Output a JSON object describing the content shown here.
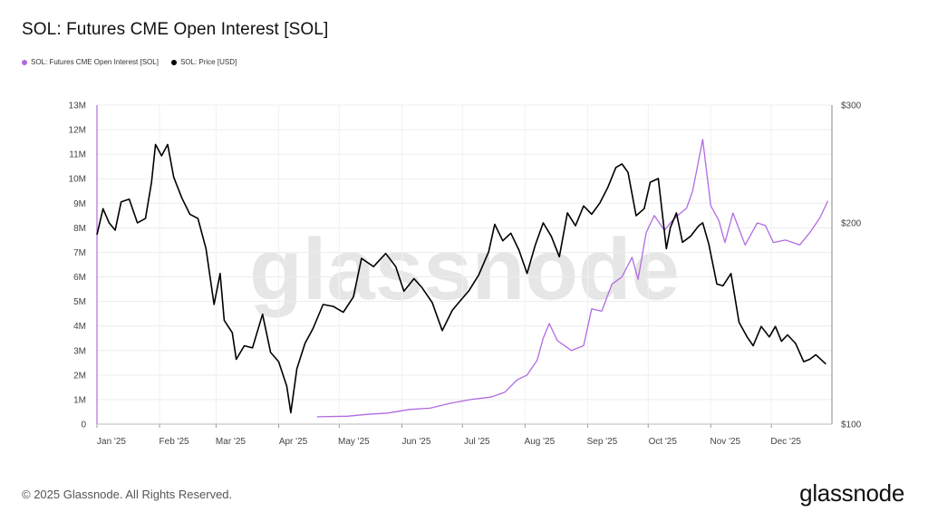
{
  "title": "SOL: Futures CME Open Interest [SOL]",
  "legend": [
    {
      "label": "SOL: Futures CME Open Interest [SOL]",
      "color": "#b06be0"
    },
    {
      "label": "SOL: Price [USD]",
      "color": "#000000"
    }
  ],
  "footer": "© 2025 Glassnode. All Rights Reserved.",
  "brand": "glassnode",
  "watermark": "glassnode",
  "chart_data": {
    "type": "line",
    "title": "SOL: Futures CME Open Interest [SOL]",
    "x_ticks": [
      "Jan '25",
      "Feb '25",
      "Mar '25",
      "Apr '25",
      "May '25",
      "Jun '25",
      "Jul '25",
      "Aug '25",
      "Sep '25",
      "Oct '25",
      "Nov '25",
      "Dec '25"
    ],
    "xlim": [
      "2025-01-01",
      "2025-12-31"
    ],
    "y_left": {
      "ticks": [
        "0",
        "1M",
        "2M",
        "3M",
        "4M",
        "5M",
        "6M",
        "7M",
        "8M",
        "9M",
        "10M",
        "11M",
        "12M",
        "13M"
      ],
      "lim": [
        0,
        13000000
      ]
    },
    "y_right": {
      "ticks": [
        "$100",
        "$200",
        "$300"
      ],
      "lim": [
        100,
        300
      ],
      "scale": "log"
    },
    "grid": true,
    "legend_position": "top-left",
    "series": [
      {
        "name": "SOL: Futures CME Open Interest [SOL]",
        "axis": "left",
        "color": "#b06be0",
        "points": [
          [
            "2025-04-20",
            300000
          ],
          [
            "2025-05-05",
            320000
          ],
          [
            "2025-05-15",
            400000
          ],
          [
            "2025-05-25",
            450000
          ],
          [
            "2025-06-05",
            600000
          ],
          [
            "2025-06-15",
            650000
          ],
          [
            "2025-06-25",
            850000
          ],
          [
            "2025-07-05",
            1000000
          ],
          [
            "2025-07-15",
            1100000
          ],
          [
            "2025-07-22",
            1300000
          ],
          [
            "2025-07-28",
            1800000
          ],
          [
            "2025-08-02",
            2000000
          ],
          [
            "2025-08-07",
            2600000
          ],
          [
            "2025-08-10",
            3500000
          ],
          [
            "2025-08-13",
            4100000
          ],
          [
            "2025-08-17",
            3400000
          ],
          [
            "2025-08-24",
            3000000
          ],
          [
            "2025-08-30",
            3200000
          ],
          [
            "2025-09-03",
            4700000
          ],
          [
            "2025-09-08",
            4600000
          ],
          [
            "2025-09-13",
            5700000
          ],
          [
            "2025-09-18",
            6000000
          ],
          [
            "2025-09-23",
            6800000
          ],
          [
            "2025-09-26",
            5900000
          ],
          [
            "2025-09-30",
            7800000
          ],
          [
            "2025-10-04",
            8500000
          ],
          [
            "2025-10-09",
            7900000
          ],
          [
            "2025-10-13",
            8300000
          ],
          [
            "2025-10-17",
            8600000
          ],
          [
            "2025-10-20",
            8800000
          ],
          [
            "2025-10-23",
            9500000
          ],
          [
            "2025-10-28",
            11600000
          ],
          [
            "2025-11-01",
            8900000
          ],
          [
            "2025-11-05",
            8300000
          ],
          [
            "2025-11-08",
            7400000
          ],
          [
            "2025-11-12",
            8600000
          ],
          [
            "2025-11-18",
            7300000
          ],
          [
            "2025-11-24",
            8200000
          ],
          [
            "2025-11-28",
            8100000
          ],
          [
            "2025-12-02",
            7400000
          ],
          [
            "2025-12-08",
            7500000
          ],
          [
            "2025-12-15",
            7300000
          ],
          [
            "2025-12-20",
            7800000
          ],
          [
            "2025-12-25",
            8400000
          ],
          [
            "2025-12-29",
            9100000
          ]
        ]
      },
      {
        "name": "SOL: Price [USD]",
        "axis": "right",
        "color": "#000000",
        "points": [
          [
            "2025-01-01",
            192
          ],
          [
            "2025-01-04",
            210
          ],
          [
            "2025-01-07",
            200
          ],
          [
            "2025-01-10",
            195
          ],
          [
            "2025-01-13",
            215
          ],
          [
            "2025-01-17",
            217
          ],
          [
            "2025-01-21",
            200
          ],
          [
            "2025-01-25",
            203
          ],
          [
            "2025-01-28",
            230
          ],
          [
            "2025-01-30",
            262
          ],
          [
            "2025-02-02",
            252
          ],
          [
            "2025-02-05",
            262
          ],
          [
            "2025-02-08",
            234
          ],
          [
            "2025-02-12",
            218
          ],
          [
            "2025-02-16",
            206
          ],
          [
            "2025-02-20",
            203
          ],
          [
            "2025-02-24",
            183
          ],
          [
            "2025-02-28",
            151
          ],
          [
            "2025-03-03",
            168
          ],
          [
            "2025-03-05",
            143
          ],
          [
            "2025-03-09",
            137
          ],
          [
            "2025-03-11",
            125
          ],
          [
            "2025-03-15",
            131
          ],
          [
            "2025-03-19",
            130
          ],
          [
            "2025-03-24",
            146
          ],
          [
            "2025-03-28",
            128
          ],
          [
            "2025-04-01",
            124
          ],
          [
            "2025-04-05",
            114
          ],
          [
            "2025-04-07",
            104
          ],
          [
            "2025-04-10",
            121
          ],
          [
            "2025-04-14",
            132
          ],
          [
            "2025-04-18",
            139
          ],
          [
            "2025-04-23",
            151
          ],
          [
            "2025-04-28",
            150
          ],
          [
            "2025-05-03",
            147
          ],
          [
            "2025-05-08",
            155
          ],
          [
            "2025-05-12",
            177
          ],
          [
            "2025-05-18",
            172
          ],
          [
            "2025-05-24",
            180
          ],
          [
            "2025-05-29",
            172
          ],
          [
            "2025-06-02",
            158
          ],
          [
            "2025-06-07",
            165
          ],
          [
            "2025-06-11",
            160
          ],
          [
            "2025-06-16",
            152
          ],
          [
            "2025-06-21",
            138
          ],
          [
            "2025-06-26",
            148
          ],
          [
            "2025-06-30",
            153
          ],
          [
            "2025-07-04",
            158
          ],
          [
            "2025-07-09",
            167
          ],
          [
            "2025-07-14",
            181
          ],
          [
            "2025-07-17",
            199
          ],
          [
            "2025-07-21",
            188
          ],
          [
            "2025-07-25",
            193
          ],
          [
            "2025-07-29",
            182
          ],
          [
            "2025-08-02",
            168
          ],
          [
            "2025-08-06",
            185
          ],
          [
            "2025-08-10",
            200
          ],
          [
            "2025-08-14",
            191
          ],
          [
            "2025-08-18",
            178
          ],
          [
            "2025-08-22",
            207
          ],
          [
            "2025-08-26",
            198
          ],
          [
            "2025-08-30",
            212
          ],
          [
            "2025-09-03",
            206
          ],
          [
            "2025-09-07",
            214
          ],
          [
            "2025-09-11",
            226
          ],
          [
            "2025-09-15",
            242
          ],
          [
            "2025-09-18",
            245
          ],
          [
            "2025-09-21",
            238
          ],
          [
            "2025-09-25",
            205
          ],
          [
            "2025-09-29",
            210
          ],
          [
            "2025-10-02",
            230
          ],
          [
            "2025-10-06",
            233
          ],
          [
            "2025-10-10",
            183
          ],
          [
            "2025-10-12",
            197
          ],
          [
            "2025-10-15",
            207
          ],
          [
            "2025-10-18",
            187
          ],
          [
            "2025-10-22",
            191
          ],
          [
            "2025-10-26",
            198
          ],
          [
            "2025-10-28",
            200
          ],
          [
            "2025-10-31",
            186
          ],
          [
            "2025-11-04",
            162
          ],
          [
            "2025-11-07",
            161
          ],
          [
            "2025-11-11",
            168
          ],
          [
            "2025-11-15",
            142
          ],
          [
            "2025-11-19",
            135
          ],
          [
            "2025-11-22",
            131
          ],
          [
            "2025-11-26",
            140
          ],
          [
            "2025-11-30",
            135
          ],
          [
            "2025-12-03",
            140
          ],
          [
            "2025-12-06",
            133
          ],
          [
            "2025-12-09",
            136
          ],
          [
            "2025-12-13",
            132
          ],
          [
            "2025-12-17",
            124
          ],
          [
            "2025-12-20",
            125
          ],
          [
            "2025-12-23",
            127
          ],
          [
            "2025-12-28",
            123
          ]
        ]
      }
    ]
  }
}
